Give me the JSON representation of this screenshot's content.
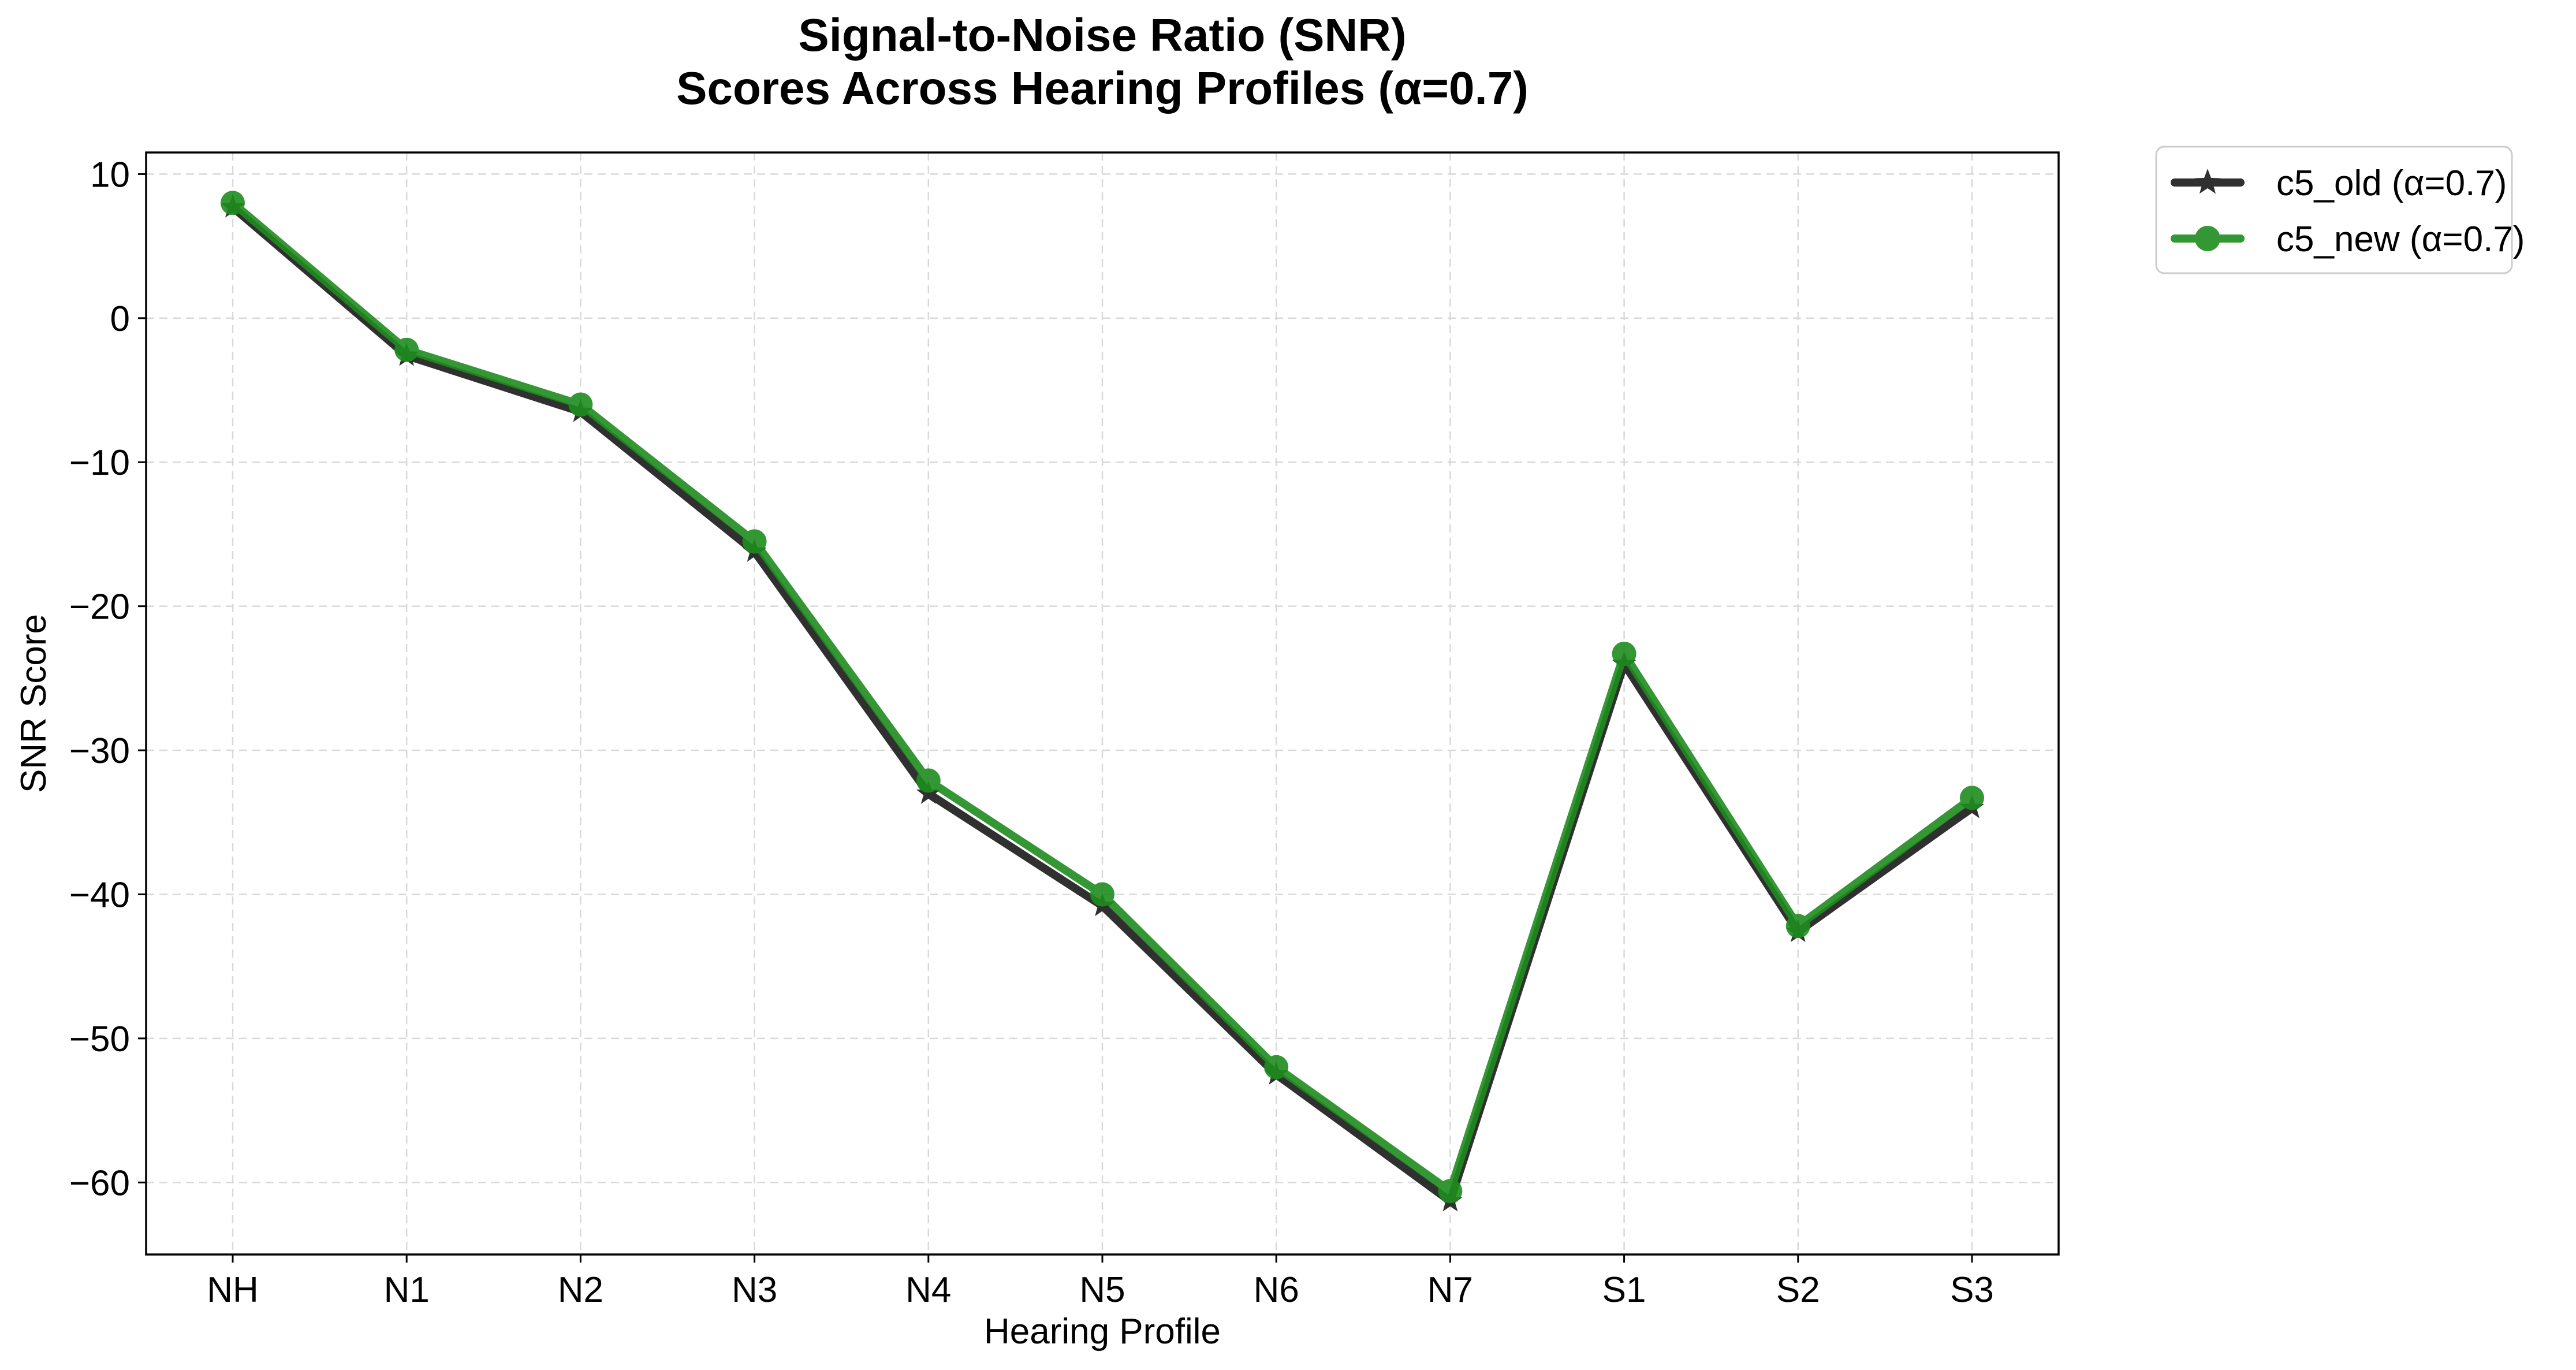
{
  "chart_data": {
    "type": "line",
    "title": [
      "Signal-to-Noise Ratio (SNR)",
      "Scores Across Hearing Profiles (α=0.7)"
    ],
    "xlabel": "Hearing Profile",
    "ylabel": "SNR Score",
    "categories": [
      "NH",
      "N1",
      "N2",
      "N3",
      "N4",
      "N5",
      "N6",
      "N7",
      "S1",
      "S2",
      "S3"
    ],
    "ylim": [
      -65,
      11.5
    ],
    "yticks": [
      10,
      0,
      -10,
      -20,
      -30,
      -40,
      -50,
      -60
    ],
    "ytick_labels": [
      "10",
      "0",
      "−10",
      "−20",
      "−30",
      "−40",
      "−50",
      "−60"
    ],
    "grid": true,
    "legend_position": "outside-top-right",
    "series": [
      {
        "name": "c5_old (α=0.7)",
        "marker": "star",
        "color": "#1a1a1a",
        "values": [
          7.7,
          -2.6,
          -6.5,
          -16.2,
          -33.0,
          -40.8,
          -52.5,
          -61.3,
          -24.0,
          -42.6,
          -34.0
        ]
      },
      {
        "name": "c5_new (α=0.7)",
        "marker": "circle",
        "color": "#1e8c1e",
        "values": [
          8.0,
          -2.2,
          -6.0,
          -15.5,
          -32.1,
          -40.0,
          -52.0,
          -60.6,
          -23.3,
          -42.2,
          -33.3
        ]
      }
    ]
  }
}
